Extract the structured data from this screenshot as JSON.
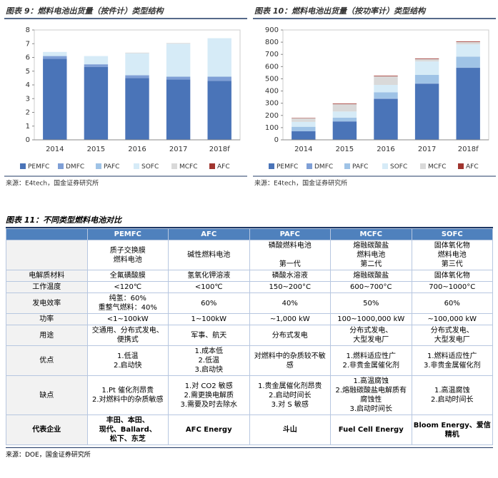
{
  "chart_data": [
    {
      "type": "bar",
      "stacked": true,
      "title": "图表 9：燃料电池出货量（按件计）类型结构",
      "categories": [
        "2014",
        "2015",
        "2016",
        "2017",
        "2018f"
      ],
      "ylim": [
        0,
        8
      ],
      "yticks": [
        0,
        1,
        2,
        3,
        4,
        5,
        6,
        7,
        8
      ],
      "series": [
        {
          "name": "PEMFC",
          "color": "#4a74b8",
          "values": [
            5.9,
            5.3,
            4.5,
            4.4,
            4.3
          ]
        },
        {
          "name": "DMFC",
          "color": "#7f9fd6",
          "values": [
            0.2,
            0.2,
            0.2,
            0.2,
            0.3
          ]
        },
        {
          "name": "PAFC",
          "color": "#9fc3e6",
          "values": [
            0,
            0,
            0,
            0,
            0
          ]
        },
        {
          "name": "SOFC",
          "color": "#d6ebf7",
          "values": [
            0.3,
            0.6,
            1.6,
            2.4,
            2.8
          ]
        },
        {
          "name": "MCFC",
          "color": "#d9d9d9",
          "values": [
            0,
            0,
            0.05,
            0.05,
            0
          ]
        },
        {
          "name": "AFC",
          "color": "#a0352f",
          "values": [
            0,
            0,
            0,
            0,
            0
          ]
        }
      ],
      "source": "来源：E4tech，国金证券研究所"
    },
    {
      "type": "bar",
      "stacked": true,
      "title": "图表 10：燃料电池出货量（按功率计）类型结构",
      "categories": [
        "2014",
        "2015",
        "2016",
        "2017",
        "2018f"
      ],
      "ylim": [
        0,
        900
      ],
      "yticks": [
        0,
        100,
        200,
        300,
        400,
        500,
        600,
        700,
        800,
        900
      ],
      "series": [
        {
          "name": "PEMFC",
          "color": "#4a74b8",
          "values": [
            70,
            150,
            335,
            460,
            590
          ]
        },
        {
          "name": "DMFC",
          "color": "#7f9fd6",
          "values": [
            2,
            2,
            5,
            2,
            2
          ]
        },
        {
          "name": "PAFC",
          "color": "#9fc3e6",
          "values": [
            35,
            30,
            50,
            70,
            90
          ]
        },
        {
          "name": "SOFC",
          "color": "#d6ebf7",
          "values": [
            40,
            50,
            60,
            110,
            100
          ]
        },
        {
          "name": "MCFC",
          "color": "#d9d9d9",
          "values": [
            30,
            60,
            70,
            20,
            20
          ]
        },
        {
          "name": "AFC",
          "color": "#a0352f",
          "values": [
            3,
            5,
            5,
            5,
            5
          ]
        }
      ],
      "source": "来源：E4tech，国金证券研究所"
    }
  ],
  "table": {
    "title": "图表 11：不同类型燃料电池对比",
    "header": [
      null,
      "PEMFC",
      "AFC",
      "PAFC",
      "MCFC",
      "SOFC"
    ],
    "rows": [
      [
        null,
        "质子交换膜\n燃料电池",
        "碱性燃料电池",
        "磷酸燃料电池\n\n第一代",
        "熔融碳酸盐\n燃料电池\n第二代",
        "固体氧化物\n燃料电池\n第三代"
      ],
      [
        "电解质材料",
        "全氟磺酸膜",
        "氢氧化钾溶液",
        "磷酸水溶液",
        "熔融碳酸盐",
        "固体氧化物"
      ],
      [
        "工作温度",
        "<120℃",
        "<100℃",
        "150~200°C",
        "600~700°C",
        "700~1000°C"
      ],
      [
        "发电效率",
        "纯氢：60%\n重整气燃料：40%",
        "60%",
        "40%",
        "50%",
        "60%"
      ],
      [
        "功率",
        "<1~100kW",
        "1~100kW",
        "~1,000 kW",
        "100~1000,000 kW",
        "~100,000 kW"
      ],
      [
        "用途",
        "交通用、分布式发电、便携式",
        "军事、航天",
        "分布式发电",
        "分布式发电、\n大型发电厂",
        "分布式发电、\n大型发电厂"
      ],
      [
        "优点",
        "1.低温\n2.启动快",
        "1.成本低\n2.低温\n3.启动快",
        "对燃料中的杂质较不敏感",
        "1.燃料适应性广\n2.非贵金属催化剂",
        "1.燃料适应性广\n3.非贵金属催化剂"
      ],
      [
        "缺点",
        "1.Pt 催化剂昂贵\n2.对燃料中的杂质敏感",
        "1.对 CO2 敏感\n2.需更换电解质\n3.需要及时去除水",
        "1.贵金属催化剂昂贵\n2.启动时间长\n3.对 S 敏感",
        "1.高温腐蚀\n2.熔融碳酸盐电解质有腐蚀性\n3.启动时间长",
        "1.高温腐蚀\n2.启动时间长"
      ],
      [
        "代表企业",
        "丰田、本田、\n现代、Ballard、\n松下、东芝",
        "AFC Energy",
        "斗山",
        "Fuel Cell Energy",
        "Bloom Energy、爱信精机"
      ]
    ],
    "source": "来源：DOE，国金证券研究所"
  }
}
